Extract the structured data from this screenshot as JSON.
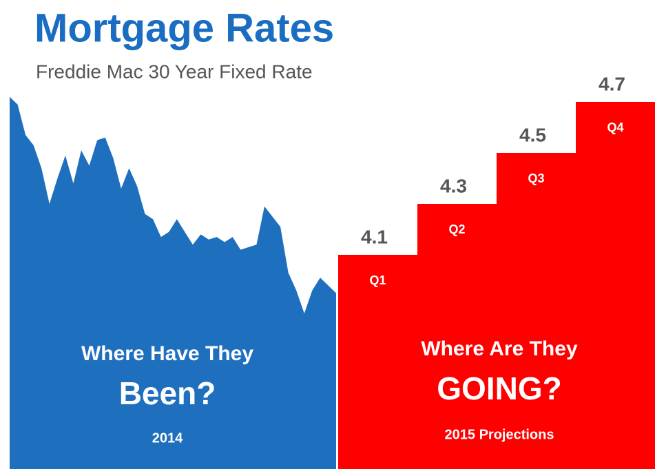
{
  "chart_data": {
    "type": "history-and-steps",
    "title": "Mortgage Rates",
    "subtitle": "Freddie Mac 30 Year Fixed Rate",
    "ylim": [
      3.3,
      5.1
    ],
    "history": {
      "heading": "Where Have They",
      "heading_emphasis": "Been?",
      "label": "2014",
      "color": "#1f6fbf",
      "values": [
        4.72,
        4.69,
        4.57,
        4.53,
        4.44,
        4.3,
        4.4,
        4.49,
        4.38,
        4.51,
        4.45,
        4.55,
        4.56,
        4.48,
        4.36,
        4.44,
        4.37,
        4.26,
        4.24,
        4.17,
        4.19,
        4.24,
        4.19,
        4.14,
        4.18,
        4.16,
        4.17,
        4.15,
        4.17,
        4.12,
        4.13,
        4.14,
        4.29,
        4.25,
        4.21,
        4.03,
        3.96,
        3.87,
        3.96,
        4.01,
        3.98,
        3.95
      ]
    },
    "projection": {
      "heading": "Where Are They",
      "heading_emphasis": "GOING?",
      "label": "2015 Projections",
      "color": "#ff0000",
      "categories": [
        "Q1",
        "Q2",
        "Q3",
        "Q4"
      ],
      "values": [
        4.1,
        4.3,
        4.5,
        4.7
      ]
    }
  }
}
